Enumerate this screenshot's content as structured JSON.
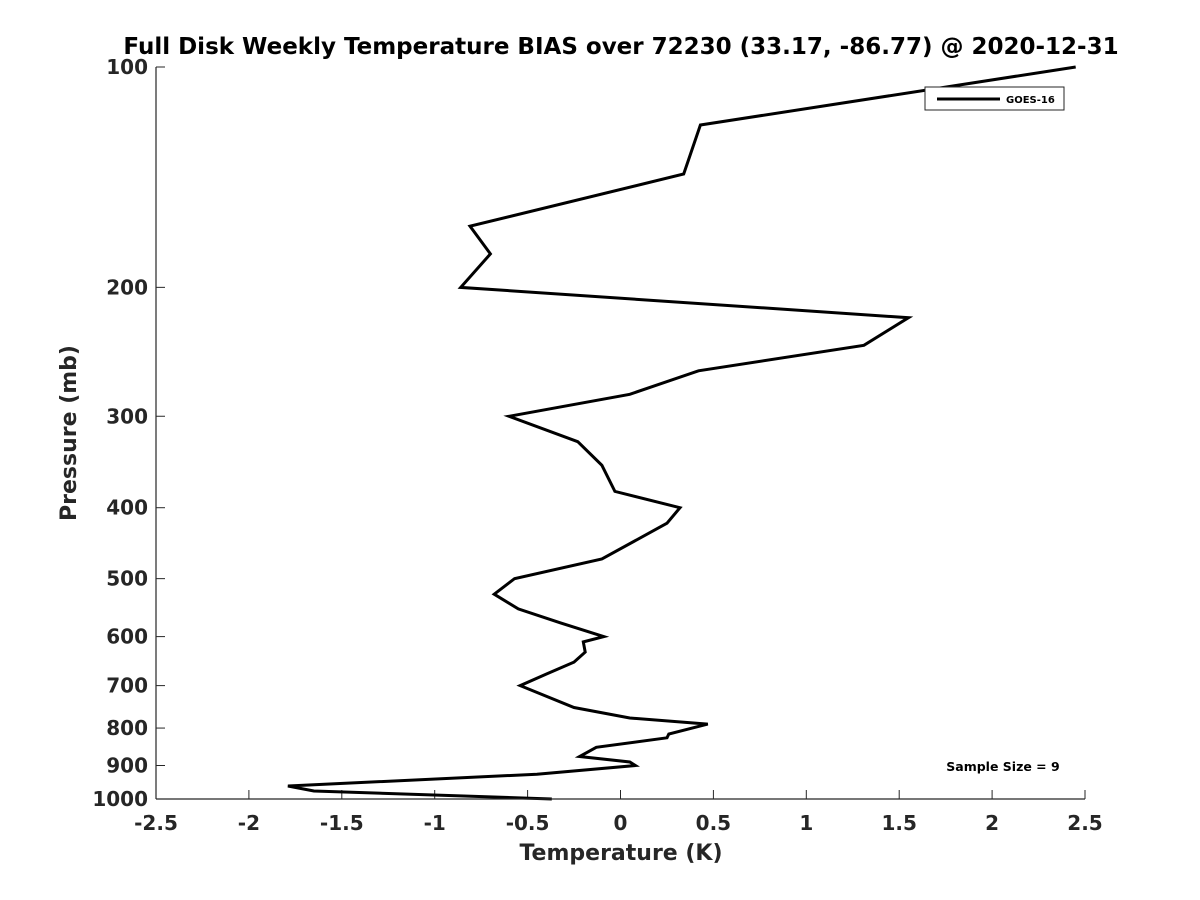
{
  "chart_data": {
    "type": "line",
    "title": "Full Disk Weekly Temperature BIAS over 72230 (33.17, -86.77) @ 2020-12-31",
    "xlabel": "Temperature (K)",
    "ylabel": "Pressure (mb)",
    "xlim": [
      -2.5,
      2.5
    ],
    "ylim": [
      1000,
      100
    ],
    "y_scale": "log",
    "y_reversed": true,
    "grid": false,
    "legend_placement": "top-right",
    "x_ticks": [
      "-2.5",
      "-2",
      "-1.5",
      "-1",
      "-0.5",
      "0",
      "0.5",
      "1",
      "1.5",
      "2",
      "2.5"
    ],
    "x_tick_values": [
      -2.5,
      -2,
      -1.5,
      -1,
      -0.5,
      0,
      0.5,
      1,
      1.5,
      2,
      2.5
    ],
    "y_ticks": [
      "100",
      "200",
      "300",
      "400",
      "500",
      "600",
      "700",
      "800",
      "900",
      "1000"
    ],
    "y_tick_values": [
      100,
      200,
      300,
      400,
      500,
      600,
      700,
      800,
      900,
      1000
    ],
    "annotation": "Sample Size = 9",
    "series": [
      {
        "name": "GOES-16",
        "color": "#000000",
        "points": [
          {
            "x": 2.45,
            "p": 100
          },
          {
            "x": 0.43,
            "p": 120
          },
          {
            "x": 0.34,
            "p": 140
          },
          {
            "x": -0.81,
            "p": 165
          },
          {
            "x": -0.7,
            "p": 180
          },
          {
            "x": -0.86,
            "p": 200
          },
          {
            "x": 1.55,
            "p": 220
          },
          {
            "x": 1.31,
            "p": 240
          },
          {
            "x": 0.42,
            "p": 260
          },
          {
            "x": 0.05,
            "p": 280
          },
          {
            "x": -0.6,
            "p": 300
          },
          {
            "x": -0.23,
            "p": 325
          },
          {
            "x": -0.1,
            "p": 350
          },
          {
            "x": -0.03,
            "p": 380
          },
          {
            "x": 0.32,
            "p": 400
          },
          {
            "x": 0.25,
            "p": 420
          },
          {
            "x": -0.1,
            "p": 470
          },
          {
            "x": -0.57,
            "p": 500
          },
          {
            "x": -0.68,
            "p": 525
          },
          {
            "x": -0.55,
            "p": 550
          },
          {
            "x": -0.32,
            "p": 575
          },
          {
            "x": -0.09,
            "p": 600
          },
          {
            "x": -0.2,
            "p": 610
          },
          {
            "x": -0.19,
            "p": 630
          },
          {
            "x": -0.25,
            "p": 650
          },
          {
            "x": -0.4,
            "p": 675
          },
          {
            "x": -0.54,
            "p": 700
          },
          {
            "x": -0.25,
            "p": 750
          },
          {
            "x": 0.05,
            "p": 775
          },
          {
            "x": 0.47,
            "p": 790
          },
          {
            "x": 0.26,
            "p": 815
          },
          {
            "x": 0.25,
            "p": 825
          },
          {
            "x": -0.13,
            "p": 850
          },
          {
            "x": -0.22,
            "p": 875
          },
          {
            "x": 0.05,
            "p": 890
          },
          {
            "x": 0.08,
            "p": 900
          },
          {
            "x": -0.45,
            "p": 925
          },
          {
            "x": -1.79,
            "p": 960
          },
          {
            "x": -1.65,
            "p": 975
          },
          {
            "x": -0.37,
            "p": 1000
          }
        ]
      }
    ]
  }
}
